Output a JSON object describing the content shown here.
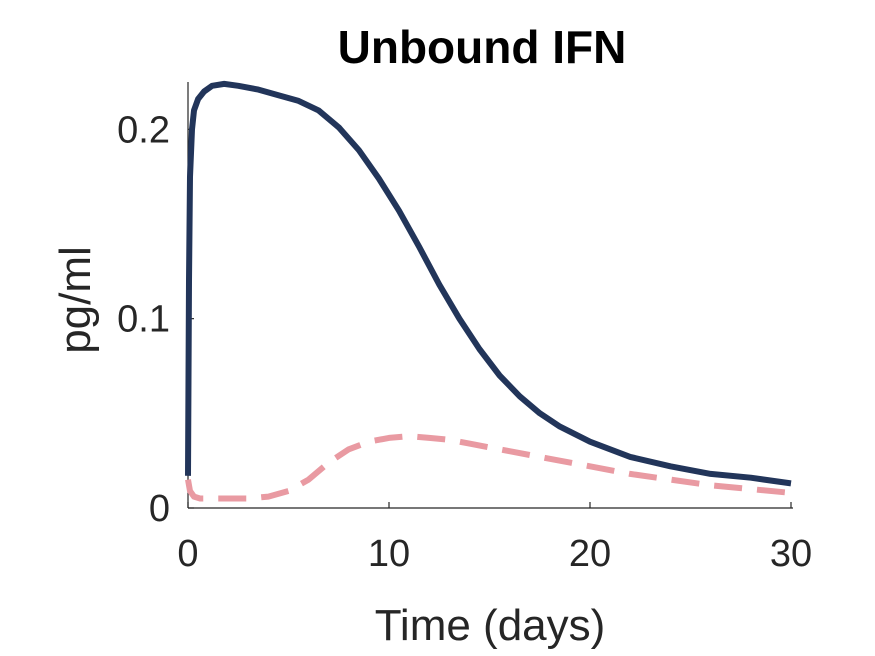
{
  "chart_data": {
    "type": "line",
    "title": "Unbound IFN",
    "xlabel": "Time (days)",
    "ylabel": "pg/ml",
    "xlim": [
      0,
      30
    ],
    "ylim": [
      0,
      0.225
    ],
    "xticks": [
      0,
      10,
      20,
      30
    ],
    "xtick_labels": [
      "0",
      "10",
      "20",
      "30"
    ],
    "yticks": [
      0,
      0.1,
      0.2
    ],
    "ytick_labels": [
      "0",
      "0.1",
      "0.2"
    ],
    "grid": false,
    "series": [
      {
        "color": "#22355a",
        "style": "solid",
        "x": [
          0,
          0.05,
          0.1,
          0.2,
          0.3,
          0.5,
          0.8,
          1.2,
          1.8,
          2.5,
          3.5,
          4.5,
          5.5,
          6.5,
          7.5,
          8.5,
          9.5,
          10.5,
          11.5,
          12.5,
          13.5,
          14.5,
          15.5,
          16.5,
          17.5,
          18.5,
          20,
          22,
          24,
          26,
          28,
          30
        ],
        "y": [
          0.017,
          0.12,
          0.175,
          0.2,
          0.21,
          0.216,
          0.22,
          0.223,
          0.224,
          0.223,
          0.221,
          0.218,
          0.215,
          0.21,
          0.201,
          0.189,
          0.174,
          0.157,
          0.138,
          0.118,
          0.1,
          0.084,
          0.07,
          0.059,
          0.05,
          0.043,
          0.035,
          0.027,
          0.022,
          0.018,
          0.016,
          0.013
        ]
      },
      {
        "color": "#e99aa2",
        "style": "dashed",
        "x": [
          0,
          0.1,
          0.3,
          0.6,
          1,
          2,
          3,
          4,
          5,
          6,
          7,
          8,
          9,
          10,
          11,
          12,
          13,
          14,
          15,
          16,
          18,
          20,
          22,
          24,
          26,
          28,
          30
        ],
        "y": [
          0.015,
          0.009,
          0.006,
          0.005,
          0.005,
          0.005,
          0.005,
          0.006,
          0.009,
          0.015,
          0.024,
          0.031,
          0.035,
          0.037,
          0.038,
          0.037,
          0.036,
          0.034,
          0.032,
          0.03,
          0.026,
          0.022,
          0.018,
          0.015,
          0.012,
          0.01,
          0.008
        ]
      }
    ]
  }
}
